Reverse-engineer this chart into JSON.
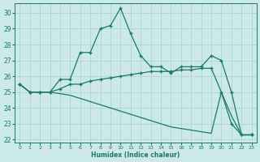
{
  "xlabel": "Humidex (Indice chaleur)",
  "background_color": "#cce8e8",
  "line_color": "#1a7a6a",
  "grid_color": "#aed4d4",
  "ylim": [
    21.8,
    30.6
  ],
  "xlim": [
    -0.5,
    23.5
  ],
  "yticks": [
    22,
    23,
    24,
    25,
    26,
    27,
    28,
    29,
    30
  ],
  "xticks": [
    0,
    1,
    2,
    3,
    4,
    5,
    6,
    7,
    8,
    9,
    10,
    11,
    12,
    13,
    14,
    15,
    16,
    17,
    18,
    19,
    20,
    21,
    22,
    23
  ],
  "line1_x": [
    0,
    1,
    2,
    3,
    4,
    5,
    6,
    7,
    8,
    9,
    10,
    11,
    12,
    13,
    14,
    15,
    16,
    17,
    18,
    19,
    20,
    21,
    22,
    23
  ],
  "line1_y": [
    25.5,
    25.0,
    25.0,
    25.0,
    25.8,
    25.8,
    27.5,
    27.5,
    29.0,
    29.2,
    30.3,
    28.7,
    27.3,
    26.6,
    26.6,
    26.2,
    26.6,
    26.6,
    26.6,
    27.3,
    27.0,
    25.0,
    22.3,
    22.3
  ],
  "line2_x": [
    0,
    1,
    2,
    3,
    4,
    5,
    6,
    7,
    8,
    9,
    10,
    11,
    12,
    13,
    14,
    15,
    16,
    17,
    18,
    19,
    20,
    21,
    22,
    23
  ],
  "line2_y": [
    25.5,
    25.0,
    25.0,
    25.0,
    25.2,
    25.5,
    25.5,
    25.7,
    25.8,
    25.9,
    26.0,
    26.1,
    26.2,
    26.3,
    26.3,
    26.3,
    26.4,
    26.4,
    26.5,
    26.5,
    25.0,
    23.0,
    22.3,
    22.3
  ],
  "line3_x": [
    0,
    1,
    2,
    3,
    4,
    5,
    6,
    7,
    8,
    9,
    10,
    11,
    12,
    13,
    14,
    15,
    16,
    17,
    18,
    19,
    20,
    21,
    22,
    23
  ],
  "line3_y": [
    25.5,
    25.0,
    25.0,
    25.0,
    24.9,
    24.8,
    24.6,
    24.4,
    24.2,
    24.0,
    23.8,
    23.6,
    23.4,
    23.2,
    23.0,
    22.8,
    22.7,
    22.6,
    22.5,
    22.4,
    25.0,
    23.5,
    22.3,
    22.3
  ]
}
